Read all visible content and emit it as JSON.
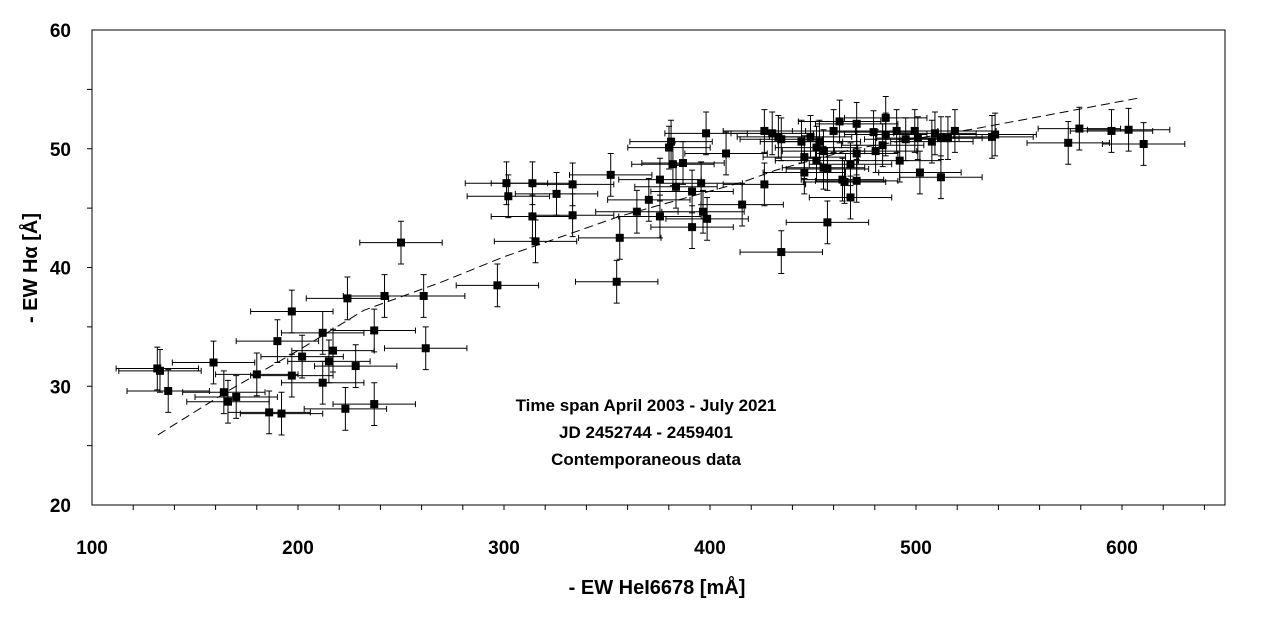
{
  "chart_data": {
    "type": "scatter",
    "title": "",
    "xlabel": "- EW HeI6678 [mÅ]",
    "ylabel": "- EW Hα [Å]",
    "xlim": [
      100,
      650
    ],
    "ylim": [
      20,
      60
    ],
    "x_ticks": [
      "100",
      "200",
      "300",
      "400",
      "500",
      "600"
    ],
    "y_ticks": [
      "20",
      "30",
      "40",
      "50",
      "60"
    ],
    "grid": false,
    "legend": "none",
    "marker_color": "#000000",
    "annotation": [
      "Time span April 2003 - July 2021",
      "JD 2452744 - 2459401",
      "Contemporaneous data"
    ],
    "error_x": 20,
    "error_y": 1.8,
    "points": [
      [
        131.7,
        31.5
      ],
      [
        133,
        31.3
      ],
      [
        137,
        29.6
      ],
      [
        159,
        32.0
      ],
      [
        164,
        29.5
      ],
      [
        166,
        28.7
      ],
      [
        170,
        29.1
      ],
      [
        180,
        31.0
      ],
      [
        186,
        27.8
      ],
      [
        190,
        33.8
      ],
      [
        192,
        27.7
      ],
      [
        197,
        36.3
      ],
      [
        197,
        30.9
      ],
      [
        202,
        32.5
      ],
      [
        212,
        30.3
      ],
      [
        212,
        34.5
      ],
      [
        215,
        32.1
      ],
      [
        217,
        33.0
      ],
      [
        223,
        28.1
      ],
      [
        224,
        37.4
      ],
      [
        228,
        31.7
      ],
      [
        237,
        28.5
      ],
      [
        237,
        34.7
      ],
      [
        242,
        37.6
      ],
      [
        250,
        42.1
      ],
      [
        261,
        37.6
      ],
      [
        262,
        33.2
      ],
      [
        296.8,
        38.5
      ],
      [
        301.2,
        47.1
      ],
      [
        302.1,
        46.0
      ],
      [
        313.8,
        47.1
      ],
      [
        313.8,
        44.3
      ],
      [
        315.3,
        42.2
      ],
      [
        325.5,
        46.2
      ],
      [
        333.3,
        47.0
      ],
      [
        333.3,
        44.4
      ],
      [
        351.8,
        47.8
      ],
      [
        354.7,
        38.8
      ],
      [
        356.2,
        42.5
      ],
      [
        364.5,
        44.7
      ],
      [
        370.3,
        45.7
      ],
      [
        375.7,
        47.4
      ],
      [
        375.7,
        44.3
      ],
      [
        380.1,
        50.1
      ],
      [
        381.1,
        50.6
      ],
      [
        382.0,
        48.7
      ],
      [
        383.5,
        46.8
      ],
      [
        386.9,
        48.8
      ],
      [
        391.3,
        43.4
      ],
      [
        391.3,
        46.4
      ],
      [
        395.7,
        47.1
      ],
      [
        396.6,
        44.7
      ],
      [
        398.1,
        51.3
      ],
      [
        398.6,
        44.1
      ],
      [
        407.8,
        49.6
      ],
      [
        415.6,
        45.3
      ],
      [
        426.4,
        51.5
      ],
      [
        426.4,
        47.0
      ],
      [
        430.2,
        51.3
      ],
      [
        433.2,
        51.0
      ],
      [
        434.6,
        50.8
      ],
      [
        434.6,
        41.3
      ],
      [
        444.4,
        50.6
      ],
      [
        445.8,
        49.3
      ],
      [
        445.8,
        48.0
      ],
      [
        448.8,
        51.0
      ],
      [
        451.7,
        50.1
      ],
      [
        451.7,
        49.0
      ],
      [
        453.1,
        50.6
      ],
      [
        455.1,
        49.8
      ],
      [
        455.1,
        48.4
      ],
      [
        457.0,
        48.3
      ],
      [
        457.0,
        43.8
      ],
      [
        460.0,
        51.5
      ],
      [
        462.9,
        52.3
      ],
      [
        464.3,
        47.4
      ],
      [
        465.3,
        47.2
      ],
      [
        468.2,
        48.7
      ],
      [
        468.2,
        45.9
      ],
      [
        471.2,
        52.1
      ],
      [
        471.2,
        49.6
      ],
      [
        471.2,
        47.3
      ],
      [
        479.4,
        51.4
      ],
      [
        480.4,
        49.8
      ],
      [
        483.8,
        50.3
      ],
      [
        485.3,
        52.6
      ],
      [
        485.3,
        51.2
      ],
      [
        490.6,
        51.5
      ],
      [
        492.1,
        49.0
      ],
      [
        495.0,
        50.8
      ],
      [
        499.4,
        51.5
      ],
      [
        500.9,
        50.9
      ],
      [
        501.9,
        48.0
      ],
      [
        507.7,
        50.6
      ],
      [
        509.2,
        51.3
      ],
      [
        512.1,
        50.9
      ],
      [
        512.1,
        47.6
      ],
      [
        515.5,
        50.9
      ],
      [
        518.9,
        51.5
      ],
      [
        536.9,
        51.0
      ],
      [
        538.4,
        51.2
      ],
      [
        573.9,
        50.5
      ],
      [
        579.3,
        51.7
      ],
      [
        594.9,
        51.5
      ],
      [
        603.2,
        51.6
      ],
      [
        610.5,
        50.4
      ]
    ],
    "fit_line": {
      "style": "dashed",
      "x": [
        132,
        167,
        200,
        232,
        270,
        300,
        356,
        393,
        416,
        432,
        470,
        529,
        609
      ],
      "y": [
        25.9,
        29.7,
        33.0,
        36.4,
        38.8,
        40.9,
        44.3,
        46.1,
        47.2,
        48.2,
        50.0,
        51.7,
        54.3
      ]
    }
  }
}
